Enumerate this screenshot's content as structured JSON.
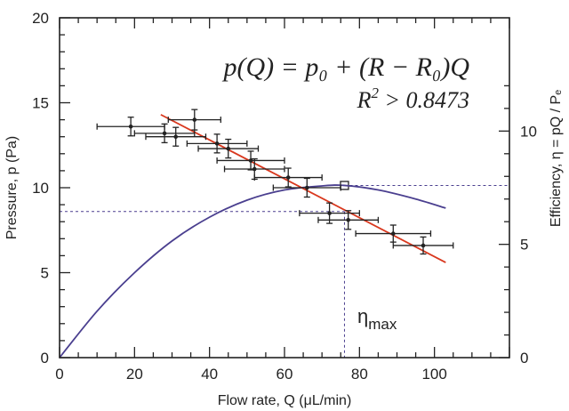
{
  "chart_data": {
    "type": "scatter",
    "xlabel": "Flow rate, Q (μL/min)",
    "ylabel": "Pressure, p (Pa)",
    "y2label": "Efficiency, η = pQ / Pₑ",
    "xlim": [
      0,
      120
    ],
    "ylim": [
      0,
      20
    ],
    "y2lim": [
      0,
      15
    ],
    "xticks": [
      "0",
      "20",
      "40",
      "60",
      "80",
      "100"
    ],
    "yticks": [
      "0",
      "5",
      "10",
      "15",
      "20"
    ],
    "y2ticks": [
      "0",
      "5",
      "10"
    ],
    "grid": false,
    "annotations": {
      "equation": "p(Q) = p₀ + (R − R₀)Q",
      "r2_prefix": "R",
      "r2_exp": "2",
      "r2_value": " > 0.8473",
      "eta_max_symbol": "η",
      "eta_max_sub": "max"
    },
    "series": [
      {
        "kind": "errorbar-scatter",
        "x": [
          19,
          28,
          31,
          36,
          42,
          45,
          51,
          52,
          61,
          66,
          72,
          77,
          89,
          97
        ],
        "y": [
          13.6,
          13.2,
          13.0,
          14.0,
          12.6,
          12.3,
          11.6,
          11.1,
          10.6,
          10.0,
          8.5,
          8.1,
          7.3,
          6.6
        ],
        "xerr": [
          9,
          8,
          8,
          7,
          8,
          8,
          9,
          8,
          9,
          9,
          8,
          8,
          10,
          8
        ],
        "yerr": [
          0.55,
          0.55,
          0.55,
          0.6,
          0.55,
          0.55,
          0.55,
          0.6,
          0.55,
          0.55,
          0.6,
          0.55,
          0.5,
          0.5
        ],
        "color": "#222222"
      },
      {
        "kind": "fit-line",
        "x": [
          27,
          103
        ],
        "y": [
          14.3,
          5.6
        ],
        "color": "#d9381e"
      },
      {
        "kind": "efficiency-curve",
        "axis": "right",
        "x": [
          0,
          10,
          20,
          30,
          40,
          50,
          60,
          70,
          76,
          85,
          95,
          103
        ],
        "y": [
          0,
          2.05,
          3.75,
          5.15,
          6.2,
          6.95,
          7.4,
          7.58,
          7.6,
          7.4,
          7.0,
          6.6
        ],
        "color": "#4a3f8f"
      }
    ],
    "guides": {
      "color": "#4a3f8f",
      "horizontal_left_y": 8.6,
      "horizontal_left_x_end": 76,
      "vertical_x": 76,
      "horizontal_right_y2": 7.6,
      "marker_x": 76,
      "marker_y2": 7.6
    }
  }
}
